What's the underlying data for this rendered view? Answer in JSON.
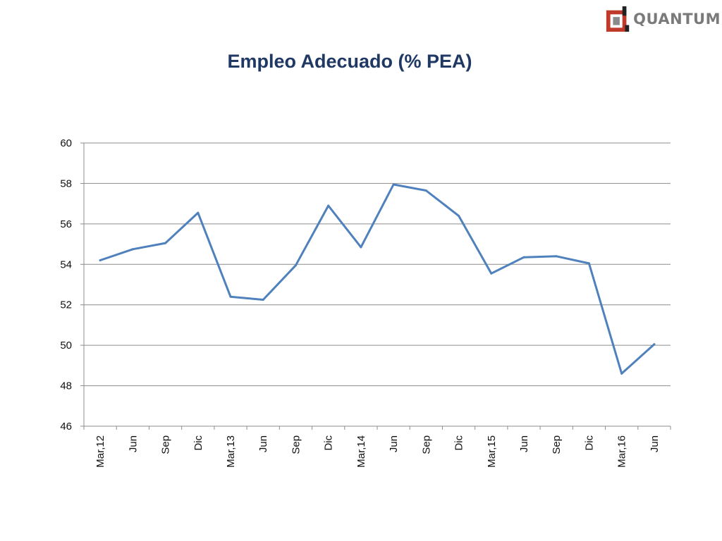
{
  "logo": {
    "text": "QUANTUM",
    "mark": "quantum-logo-icon",
    "colors": {
      "red": "#c0392b",
      "gray": "#8a8a8a",
      "dark": "#222222"
    }
  },
  "chart_data": {
    "type": "line",
    "title": "Empleo Adecuado (% PEA)",
    "xlabel": "",
    "ylabel": "",
    "ylim": [
      46,
      60
    ],
    "yticks": [
      46,
      48,
      50,
      52,
      54,
      56,
      58,
      60
    ],
    "grid": true,
    "categories": [
      "Mar,12",
      "Jun",
      "Sep",
      "Dic",
      "Mar,13",
      "Jun",
      "Sep",
      "Dic",
      "Mar,14",
      "Jun",
      "Sep",
      "Dic",
      "Mar,15",
      "Jun",
      "Sep",
      "Dic",
      "Mar,16",
      "Jun"
    ],
    "series": [
      {
        "values": [
          54.2,
          54.75,
          55.05,
          56.55,
          52.4,
          52.25,
          53.95,
          56.9,
          54.85,
          57.95,
          57.65,
          56.4,
          53.55,
          54.35,
          54.4,
          54.05,
          48.6,
          50.05
        ],
        "color": "#4f81bd"
      }
    ]
  }
}
